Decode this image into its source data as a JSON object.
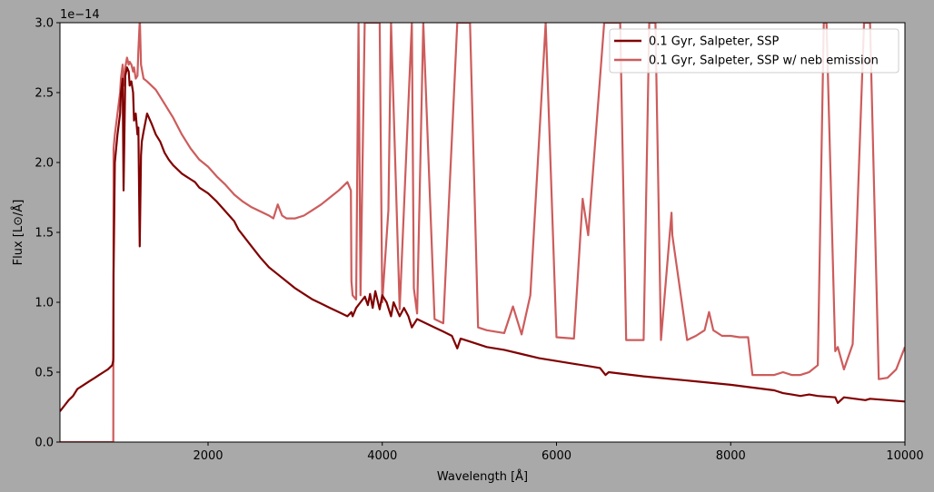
{
  "chart_data": {
    "type": "line",
    "title": "",
    "xlabel": "Wavelength [Å]",
    "ylabel": "Flux [L⊙/Å]",
    "y_offset_label": "1e−14",
    "xlim": [
      300,
      10000
    ],
    "ylim": [
      0,
      3.0
    ],
    "y_scale_exponent": -14,
    "x_ticks": [
      2000,
      4000,
      6000,
      8000,
      10000
    ],
    "x_tick_labels": [
      "2000",
      "4000",
      "6000",
      "8000",
      "10000"
    ],
    "y_ticks": [
      0,
      0.5,
      1.0,
      1.5,
      2.0,
      2.5,
      3.0
    ],
    "y_tick_labels": [
      "0.0",
      "0.5",
      "1.0",
      "1.5",
      "2.0",
      "2.5",
      "3.0"
    ],
    "grid": false,
    "legend_position": "top-right",
    "series": [
      {
        "name": "0.1 Gyr, Salpeter, SSP",
        "color": "#800000",
        "x": [
          300,
          350,
          400,
          450,
          500,
          550,
          600,
          650,
          700,
          750,
          800,
          850,
          900,
          910,
          912,
          915,
          930,
          960,
          990,
          1000,
          1020,
          1030,
          1050,
          1070,
          1090,
          1100,
          1120,
          1140,
          1150,
          1170,
          1190,
          1200,
          1215,
          1216,
          1230,
          1240,
          1260,
          1300,
          1350,
          1400,
          1450,
          1500,
          1550,
          1600,
          1650,
          1700,
          1750,
          1800,
          1850,
          1900,
          1950,
          2000,
          2100,
          2200,
          2300,
          2350,
          2400,
          2500,
          2600,
          2700,
          2800,
          2900,
          3000,
          3100,
          3200,
          3300,
          3400,
          3500,
          3600,
          3646,
          3660,
          3700,
          3750,
          3800,
          3835,
          3860,
          3890,
          3920,
          3970,
          4000,
          4050,
          4101,
          4130,
          4200,
          4250,
          4300,
          4340,
          4400,
          4500,
          4600,
          4700,
          4800,
          4861,
          4900,
          5000,
          5200,
          5400,
          5600,
          5800,
          6000,
          6200,
          6400,
          6500,
          6563,
          6600,
          7000,
          7500,
          8000,
          8500,
          8600,
          8700,
          8800,
          8900,
          9000,
          9200,
          9229,
          9300,
          9546,
          9600,
          9800,
          10000
        ],
        "y": [
          0.22,
          0.26,
          0.3,
          0.33,
          0.38,
          0.4,
          0.42,
          0.44,
          0.46,
          0.48,
          0.5,
          0.52,
          0.55,
          0.58,
          0.6,
          1.2,
          2.0,
          2.2,
          2.35,
          2.5,
          2.6,
          1.8,
          2.62,
          2.68,
          2.65,
          2.55,
          2.58,
          2.5,
          2.3,
          2.35,
          2.2,
          2.25,
          1.45,
          1.4,
          2.05,
          2.15,
          2.22,
          2.35,
          2.28,
          2.2,
          2.15,
          2.07,
          2.02,
          1.98,
          1.95,
          1.92,
          1.9,
          1.88,
          1.86,
          1.82,
          1.8,
          1.78,
          1.72,
          1.65,
          1.58,
          1.52,
          1.48,
          1.4,
          1.32,
          1.25,
          1.2,
          1.15,
          1.1,
          1.06,
          1.02,
          0.99,
          0.96,
          0.93,
          0.9,
          0.93,
          0.9,
          0.96,
          1.0,
          1.04,
          0.98,
          1.06,
          0.96,
          1.08,
          0.95,
          1.05,
          1.0,
          0.9,
          1.0,
          0.9,
          0.96,
          0.9,
          0.82,
          0.88,
          0.85,
          0.82,
          0.79,
          0.76,
          0.67,
          0.74,
          0.72,
          0.68,
          0.66,
          0.63,
          0.6,
          0.58,
          0.56,
          0.54,
          0.53,
          0.48,
          0.5,
          0.47,
          0.44,
          0.41,
          0.37,
          0.35,
          0.34,
          0.33,
          0.34,
          0.33,
          0.32,
          0.28,
          0.32,
          0.3,
          0.31,
          0.3,
          0.29
        ]
      },
      {
        "name": "0.1 Gyr, Salpeter, SSP w/ neb emission",
        "color": "#cd5c5c",
        "x": [
          300,
          500,
          700,
          900,
          910,
          912,
          915,
          930,
          960,
          990,
          1000,
          1020,
          1030,
          1050,
          1070,
          1090,
          1100,
          1120,
          1140,
          1150,
          1170,
          1190,
          1200,
          1215,
          1216,
          1218,
          1230,
          1260,
          1300,
          1350,
          1400,
          1450,
          1500,
          1600,
          1700,
          1800,
          1900,
          2000,
          2100,
          2200,
          2300,
          2400,
          2500,
          2600,
          2700,
          2750,
          2800,
          2850,
          2900,
          3000,
          3100,
          3200,
          3300,
          3400,
          3500,
          3600,
          3640,
          3646,
          3660,
          3700,
          3727,
          3750,
          3798,
          3835,
          3869,
          3889,
          3970,
          4000,
          4070,
          4101,
          4200,
          4340,
          4363,
          4400,
          4471,
          4600,
          4700,
          4861,
          4959,
          5007,
          5100,
          5200,
          5400,
          5500,
          5600,
          5700,
          5876,
          6000,
          6200,
          6300,
          6364,
          6548,
          6563,
          6583,
          6678,
          6716,
          6731,
          6800,
          7000,
          7065,
          7136,
          7200,
          7320,
          7330,
          7500,
          7600,
          7700,
          7751,
          7800,
          7900,
          8000,
          8100,
          8200,
          8250,
          8300,
          8500,
          8600,
          8700,
          8800,
          8900,
          9000,
          9069,
          9100,
          9200,
          9229,
          9300,
          9400,
          9531,
          9600,
          9700,
          9800,
          9900,
          10000
        ],
        "y": [
          0.0,
          0.0,
          0.0,
          0.0,
          0.0,
          0.0,
          2.1,
          2.2,
          2.35,
          2.5,
          2.6,
          2.7,
          2.55,
          2.68,
          2.75,
          2.7,
          2.72,
          2.7,
          2.65,
          2.68,
          2.6,
          2.62,
          2.8,
          3.0,
          3.0,
          3.0,
          2.7,
          2.6,
          2.58,
          2.55,
          2.52,
          2.47,
          2.42,
          2.32,
          2.2,
          2.1,
          2.02,
          1.97,
          1.9,
          1.84,
          1.77,
          1.72,
          1.68,
          1.65,
          1.62,
          1.6,
          1.7,
          1.62,
          1.6,
          1.6,
          1.62,
          1.66,
          1.7,
          1.75,
          1.8,
          1.86,
          1.8,
          1.15,
          1.05,
          1.02,
          3.0,
          1.05,
          3.0,
          3.0,
          3.0,
          3.0,
          3.0,
          1.0,
          1.66,
          3.0,
          0.95,
          3.0,
          1.1,
          0.92,
          3.0,
          0.88,
          0.85,
          3.0,
          3.0,
          3.0,
          0.82,
          0.8,
          0.78,
          0.97,
          0.77,
          1.05,
          3.0,
          0.75,
          0.74,
          1.74,
          1.48,
          3.0,
          3.0,
          3.0,
          3.0,
          3.0,
          3.0,
          0.73,
          0.73,
          3.0,
          3.0,
          0.73,
          1.64,
          1.48,
          0.73,
          0.76,
          0.8,
          0.93,
          0.8,
          0.76,
          0.76,
          0.75,
          0.75,
          0.48,
          0.48,
          0.48,
          0.5,
          0.48,
          0.48,
          0.5,
          0.55,
          3.0,
          3.0,
          0.65,
          0.68,
          0.52,
          0.7,
          3.0,
          3.0,
          0.45,
          0.46,
          0.52,
          0.68
        ]
      }
    ]
  }
}
